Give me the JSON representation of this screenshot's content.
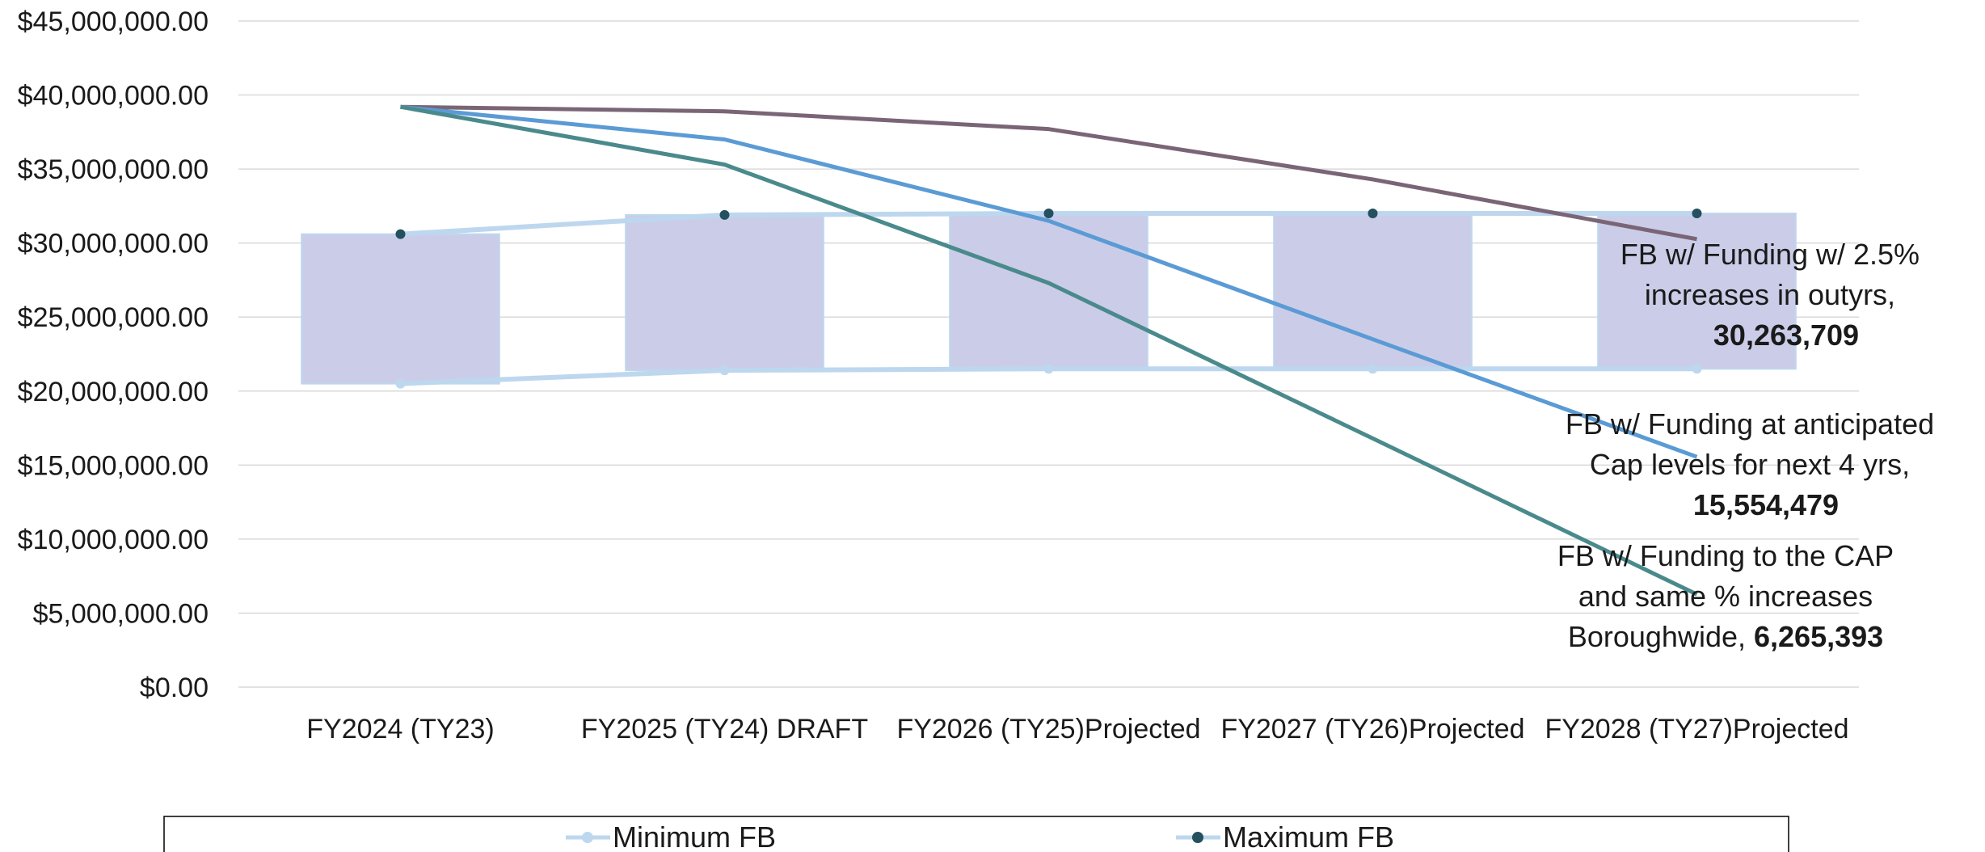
{
  "chart_data": {
    "type": "line",
    "categories": [
      "FY2024 (TY23)",
      "FY2025 (TY24) DRAFT",
      "FY2026 (TY25)Projected",
      "FY2027 (TY26)Projected",
      "FY2028 (TY27)Projected"
    ],
    "ylim": [
      0,
      45000000
    ],
    "y_ticks": [
      0,
      5000000,
      10000000,
      15000000,
      20000000,
      25000000,
      30000000,
      35000000,
      40000000,
      45000000
    ],
    "y_tick_labels": [
      "$0.00",
      "$5,000,000.00",
      "$10,000,000.00",
      "$15,000,000.00",
      "$20,000,000.00",
      "$25,000,000.00",
      "$30,000,000.00",
      "$35,000,000.00",
      "$40,000,000.00",
      "$45,000,000.00"
    ],
    "grid": true,
    "range_band": {
      "lower": [
        20500000,
        21400000,
        21500000,
        21500000,
        21500000
      ],
      "upper": [
        30600000,
        31900000,
        32000000,
        32000000,
        32000000
      ],
      "color": "#cbcde8"
    },
    "series": [
      {
        "name": "Minimum FB",
        "values": [
          20500000,
          21400000,
          21500000,
          21500000,
          21500000
        ],
        "color": "#bdd7ee",
        "marker": "#bdd7ee",
        "legend": true
      },
      {
        "name": "Maximum FB",
        "values": [
          30600000,
          31900000,
          32000000,
          32000000,
          32000000
        ],
        "color": "#bdd7ee",
        "marker": "#24505f",
        "legend": true
      },
      {
        "values": [
          39200000,
          38900000,
          37700000,
          34300000,
          30263709
        ],
        "color": "#7a6577"
      },
      {
        "values": [
          39200000,
          37000000,
          31500000,
          23500000,
          15554479
        ],
        "color": "#5b9bd5"
      },
      {
        "values": [
          39200000,
          35300000,
          27300000,
          16800000,
          6265393
        ],
        "color": "#4a8a8c"
      }
    ],
    "annotations": [
      {
        "lines": [
          "FB w/ Funding w/ 2.5%",
          "increases in outyrs,"
        ],
        "bold": "30,263,709"
      },
      {
        "lines": [
          "FB w/ Funding at anticipated",
          "Cap  levels for next 4 yrs,"
        ],
        "bold": "15,554,479"
      },
      {
        "lines": [
          "FB w/ Funding to the CAP",
          "and same % increases",
          "Boroughwide,  "
        ],
        "bold": "6,265,393"
      }
    ]
  }
}
